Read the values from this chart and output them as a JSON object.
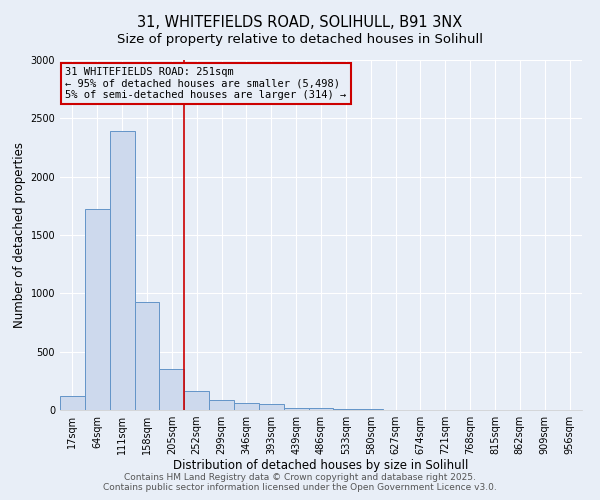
{
  "title_line1": "31, WHITEFIELDS ROAD, SOLIHULL, B91 3NX",
  "title_line2": "Size of property relative to detached houses in Solihull",
  "xlabel": "Distribution of detached houses by size in Solihull",
  "ylabel": "Number of detached properties",
  "categories": [
    "17sqm",
    "64sqm",
    "111sqm",
    "158sqm",
    "205sqm",
    "252sqm",
    "299sqm",
    "346sqm",
    "393sqm",
    "439sqm",
    "486sqm",
    "533sqm",
    "580sqm",
    "627sqm",
    "674sqm",
    "721sqm",
    "768sqm",
    "815sqm",
    "862sqm",
    "909sqm",
    "956sqm"
  ],
  "values": [
    120,
    1720,
    2390,
    930,
    350,
    160,
    90,
    60,
    50,
    20,
    15,
    10,
    5,
    2,
    1,
    1,
    1,
    1,
    1,
    1,
    1
  ],
  "bar_color": "#cdd9ed",
  "bar_edge_color": "#6394c8",
  "red_line_index": 5,
  "red_line_color": "#cc0000",
  "annotation_text": "31 WHITEFIELDS ROAD: 251sqm\n← 95% of detached houses are smaller (5,498)\n5% of semi-detached houses are larger (314) →",
  "ylim": [
    0,
    3000
  ],
  "yticks": [
    0,
    500,
    1000,
    1500,
    2000,
    2500,
    3000
  ],
  "background_color": "#e8eef7",
  "grid_color": "#ffffff",
  "footer_line1": "Contains HM Land Registry data © Crown copyright and database right 2025.",
  "footer_line2": "Contains public sector information licensed under the Open Government Licence v3.0.",
  "title_fontsize": 10.5,
  "subtitle_fontsize": 9.5,
  "axis_label_fontsize": 8.5,
  "tick_fontsize": 7,
  "annotation_fontsize": 7.5,
  "footer_fontsize": 6.5
}
